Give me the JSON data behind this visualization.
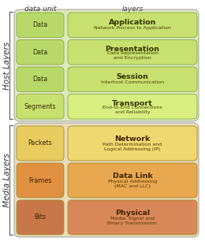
{
  "title_col1": "data unit",
  "title_col2": "layers",
  "host_label": "Host Layers",
  "media_label": "Media Layers",
  "host_bg": "#dde8bb",
  "media_bg": "#e8ddb8",
  "host_rows": [
    {
      "unit": "Data",
      "unit_color": "#b8d96a",
      "layer": "Application",
      "sublayer": "Network Process to Application",
      "layer_color": "#c8e070"
    },
    {
      "unit": "Data",
      "unit_color": "#b8d96a",
      "layer": "Presentation",
      "sublayer": "Data Representation\nand Encryption",
      "layer_color": "#c8e070"
    },
    {
      "unit": "Data",
      "unit_color": "#b8d96a",
      "layer": "Session",
      "sublayer": "Interhost Communication",
      "layer_color": "#c8e070"
    },
    {
      "unit": "Segments",
      "unit_color": "#c8e070",
      "layer": "Transport",
      "sublayer": "End-to-End Connections\nand Reliability",
      "layer_color": "#d8ee80"
    }
  ],
  "media_rows": [
    {
      "unit": "Packets",
      "unit_color": "#e8cc60",
      "layer": "Network",
      "sublayer": "Path Determination and\nLogical Addressing (IP)",
      "layer_color": "#f0d870"
    },
    {
      "unit": "Frames",
      "unit_color": "#e09040",
      "layer": "Data Link",
      "sublayer": "Physical Addressing\n(MAC and LLC)",
      "layer_color": "#e8a850"
    },
    {
      "unit": "Bits",
      "unit_color": "#c87848",
      "layer": "Physical",
      "sublayer": "Media, Signal and\nBinary Transmission",
      "layer_color": "#d88858"
    }
  ]
}
